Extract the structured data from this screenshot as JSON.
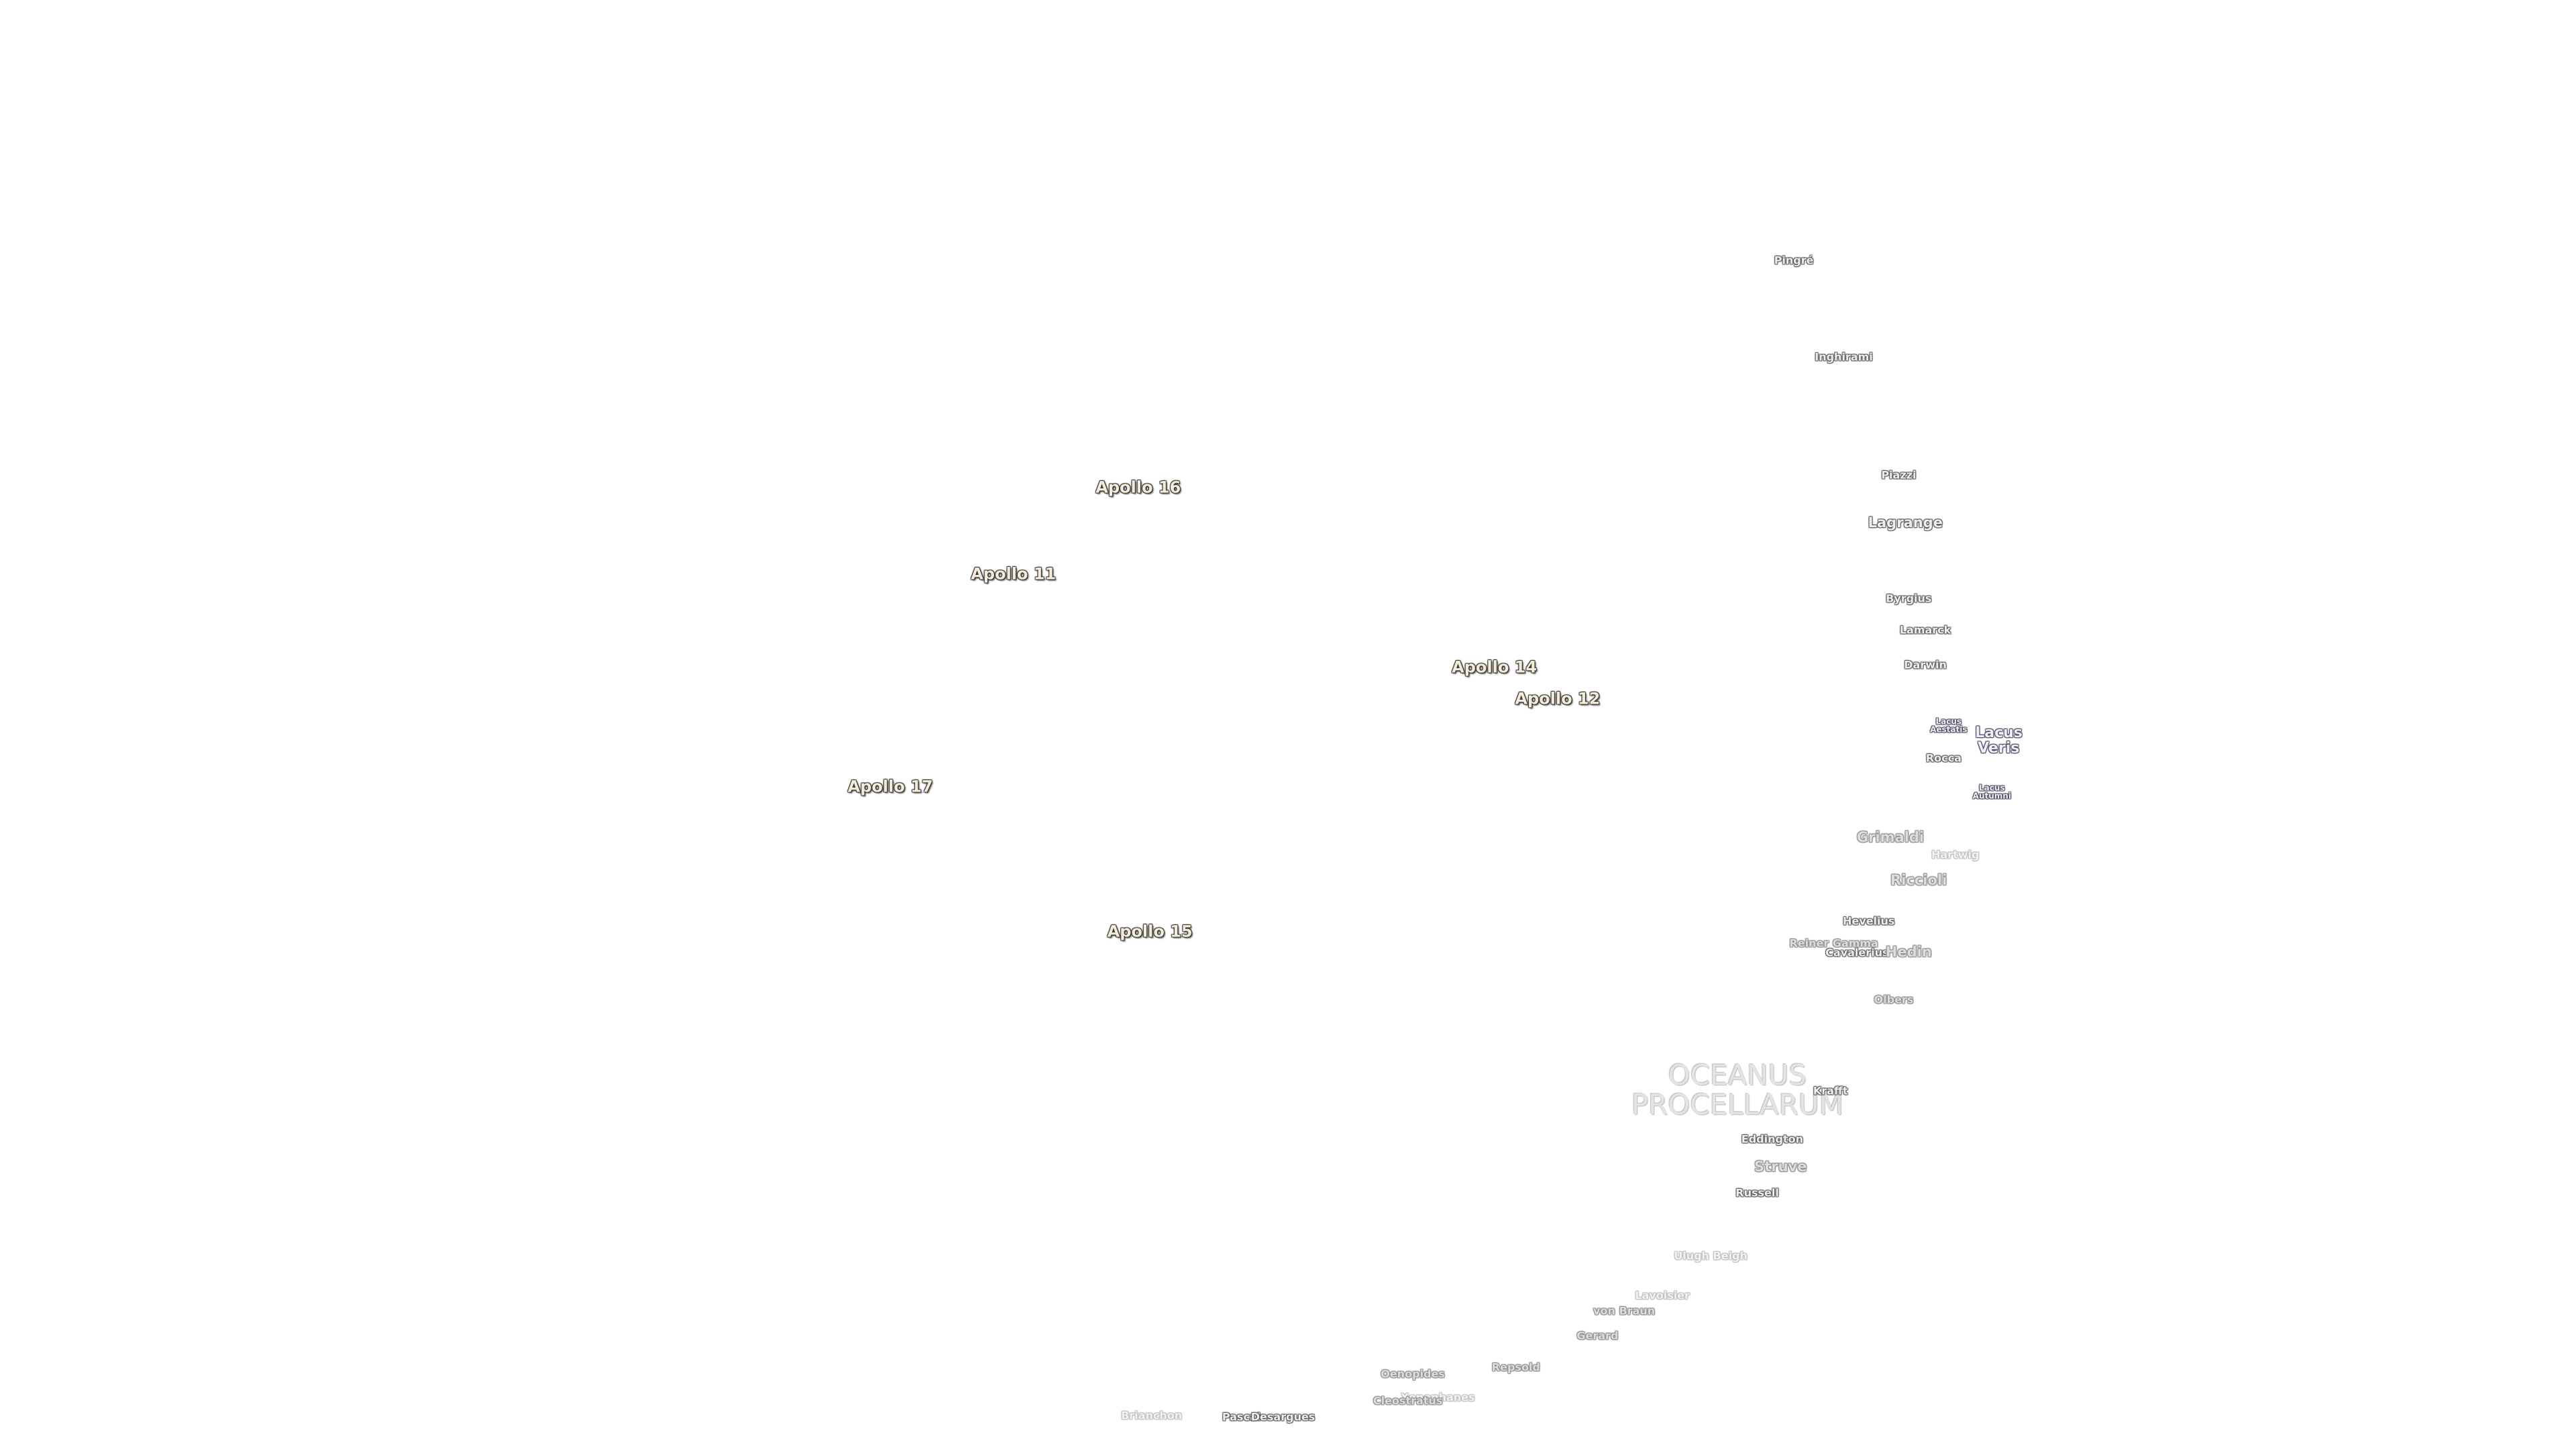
{
  "labels": [
    "Apollo 16",
    "Apollo 11",
    "Apollo 14",
    "Apollo 12",
    "Apollo 17",
    "Apollo 15",
    "Pingré",
    "Inghirami",
    "Piazzi",
    "Lagrange",
    "Byrgius",
    "Lamarck",
    "Darwin",
    "Lacus Aestatis",
    "Lacus Veris",
    "Rocca",
    "Lacus Autumni",
    "Grimaldi",
    "Hartwig",
    "Riccioli",
    "Hevelius",
    "Reiner Gamma",
    "Cavalerius",
    "Hedin",
    "Olbers",
    "OCEANUS PROCELLARUM",
    "Krafft",
    "Eddington",
    "Struve",
    "Russell",
    "Ulugh Beigh",
    "Lavoisier",
    "von Braun",
    "Gerard",
    "Repsold",
    "Oenopides",
    "Xenophanes",
    "Cleostratus",
    "Brianchon",
    "Pascal",
    "Desargues"
  ]
}
